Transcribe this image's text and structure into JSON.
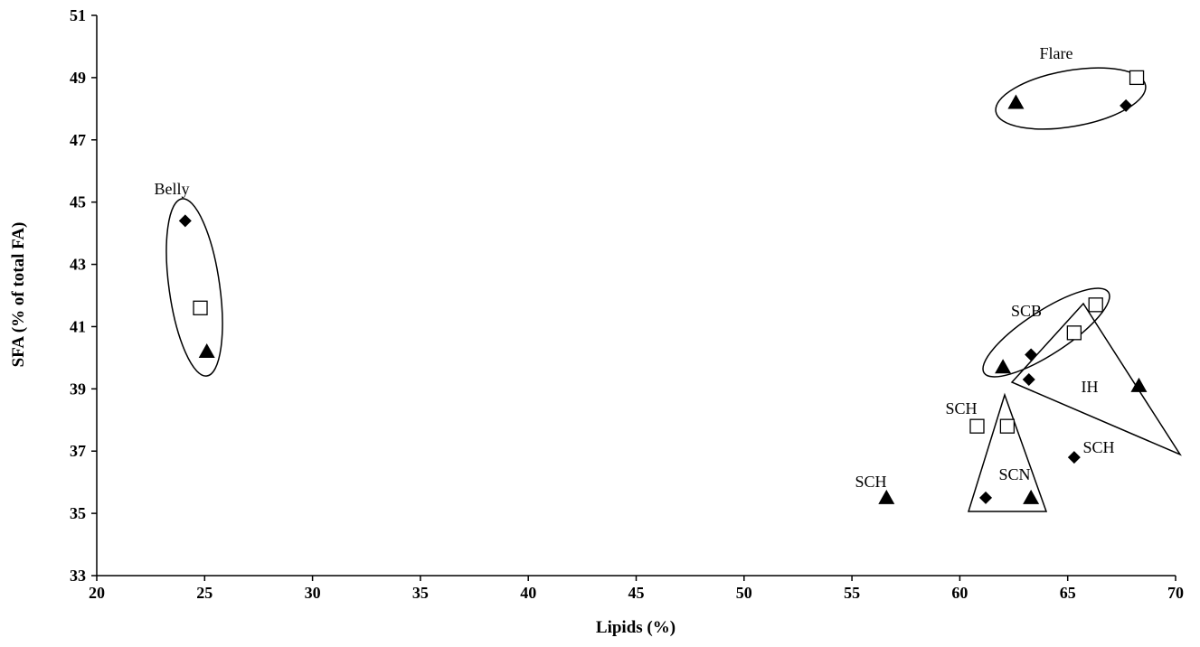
{
  "chart_data": {
    "type": "scatter",
    "title": "",
    "xlabel": "Lipids (%)",
    "ylabel": "SFA (% of total FA)",
    "xlim": [
      20,
      70
    ],
    "ylim": [
      33,
      51
    ],
    "xticks": [
      20,
      25,
      30,
      35,
      40,
      45,
      50,
      55,
      60,
      65,
      70
    ],
    "yticks": [
      33,
      35,
      37,
      39,
      41,
      43,
      45,
      47,
      49,
      51
    ],
    "grid": false,
    "legend": "none",
    "series": [
      {
        "marker": "diamond",
        "color": "#000000",
        "points": [
          {
            "x": 24.1,
            "y": 44.4
          },
          {
            "x": 67.7,
            "y": 48.1
          },
          {
            "x": 63.3,
            "y": 40.1
          },
          {
            "x": 63.2,
            "y": 39.3
          },
          {
            "x": 65.3,
            "y": 36.8
          },
          {
            "x": 61.2,
            "y": 35.5
          }
        ]
      },
      {
        "marker": "open-square",
        "color": "#000000",
        "points": [
          {
            "x": 24.8,
            "y": 41.6
          },
          {
            "x": 68.2,
            "y": 49.0
          },
          {
            "x": 66.3,
            "y": 41.7
          },
          {
            "x": 65.3,
            "y": 40.8
          },
          {
            "x": 60.8,
            "y": 37.8
          },
          {
            "x": 62.2,
            "y": 37.8
          }
        ]
      },
      {
        "marker": "triangle",
        "color": "#000000",
        "points": [
          {
            "x": 25.1,
            "y": 40.2
          },
          {
            "x": 62.6,
            "y": 48.2
          },
          {
            "x": 62.0,
            "y": 39.7
          },
          {
            "x": 68.3,
            "y": 39.1
          },
          {
            "x": 56.6,
            "y": 35.5
          },
          {
            "x": 63.3,
            "y": 35.5
          }
        ]
      }
    ],
    "annotations": [
      {
        "id": "flare",
        "text": "Flare"
      },
      {
        "id": "belly",
        "text": "Belly"
      },
      {
        "id": "scb",
        "text": "SCB"
      },
      {
        "id": "ih",
        "text": "IH"
      },
      {
        "id": "sch-top",
        "text": "SCH"
      },
      {
        "id": "sch-right",
        "text": "SCH"
      },
      {
        "id": "sch-left",
        "text": "SCH"
      },
      {
        "id": "scn",
        "text": "SCN"
      }
    ]
  }
}
